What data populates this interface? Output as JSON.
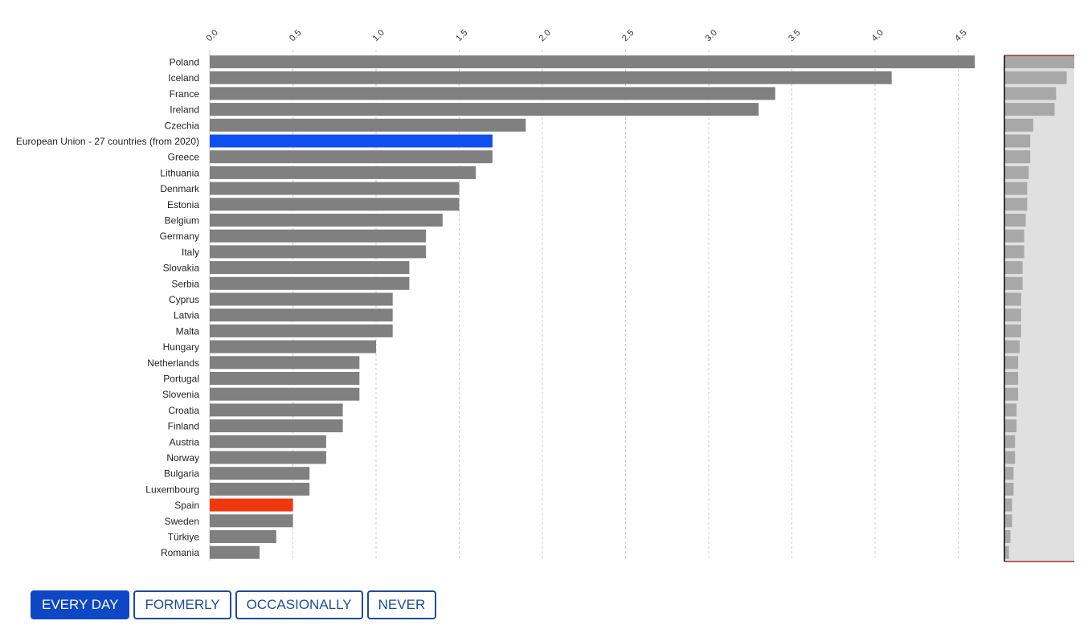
{
  "chart_data": {
    "type": "bar",
    "orientation": "horizontal",
    "xlim": [
      0,
      4.6
    ],
    "ticks": [
      "0.0",
      "0.5",
      "1.0",
      "1.5",
      "2.0",
      "2.5",
      "3.0",
      "3.5",
      "4.0",
      "4.5"
    ],
    "tick_values": [
      0,
      0.5,
      1,
      1.5,
      2,
      2.5,
      3,
      3.5,
      4,
      4.5
    ],
    "grid": true,
    "categories": [
      "Poland",
      "Iceland",
      "France",
      "Ireland",
      "Czechia",
      "European Union - 27 countries (from 2020)",
      "Greece",
      "Lithuania",
      "Denmark",
      "Estonia",
      "Belgium",
      "Germany",
      "Italy",
      "Slovakia",
      "Serbia",
      "Cyprus",
      "Latvia",
      "Malta",
      "Hungary",
      "Netherlands",
      "Portugal",
      "Slovenia",
      "Croatia",
      "Finland",
      "Austria",
      "Norway",
      "Bulgaria",
      "Luxembourg",
      "Spain",
      "Sweden",
      "Türkiye",
      "Romania"
    ],
    "values": [
      4.6,
      4.1,
      3.4,
      3.3,
      1.9,
      1.7,
      1.7,
      1.6,
      1.5,
      1.5,
      1.4,
      1.3,
      1.3,
      1.2,
      1.2,
      1.1,
      1.1,
      1.1,
      1.0,
      0.9,
      0.9,
      0.9,
      0.8,
      0.8,
      0.7,
      0.7,
      0.6,
      0.6,
      0.5,
      0.5,
      0.4,
      0.3
    ],
    "highlight": {
      "European Union - 27 countries (from 2020)": "#0e4ff0",
      "Spain": "#f0380e"
    },
    "bar_color": "#808080"
  },
  "buttons": [
    "EVERY DAY",
    "FORMERLY",
    "OCCASIONALLY",
    "NEVER"
  ],
  "active_button": 0
}
